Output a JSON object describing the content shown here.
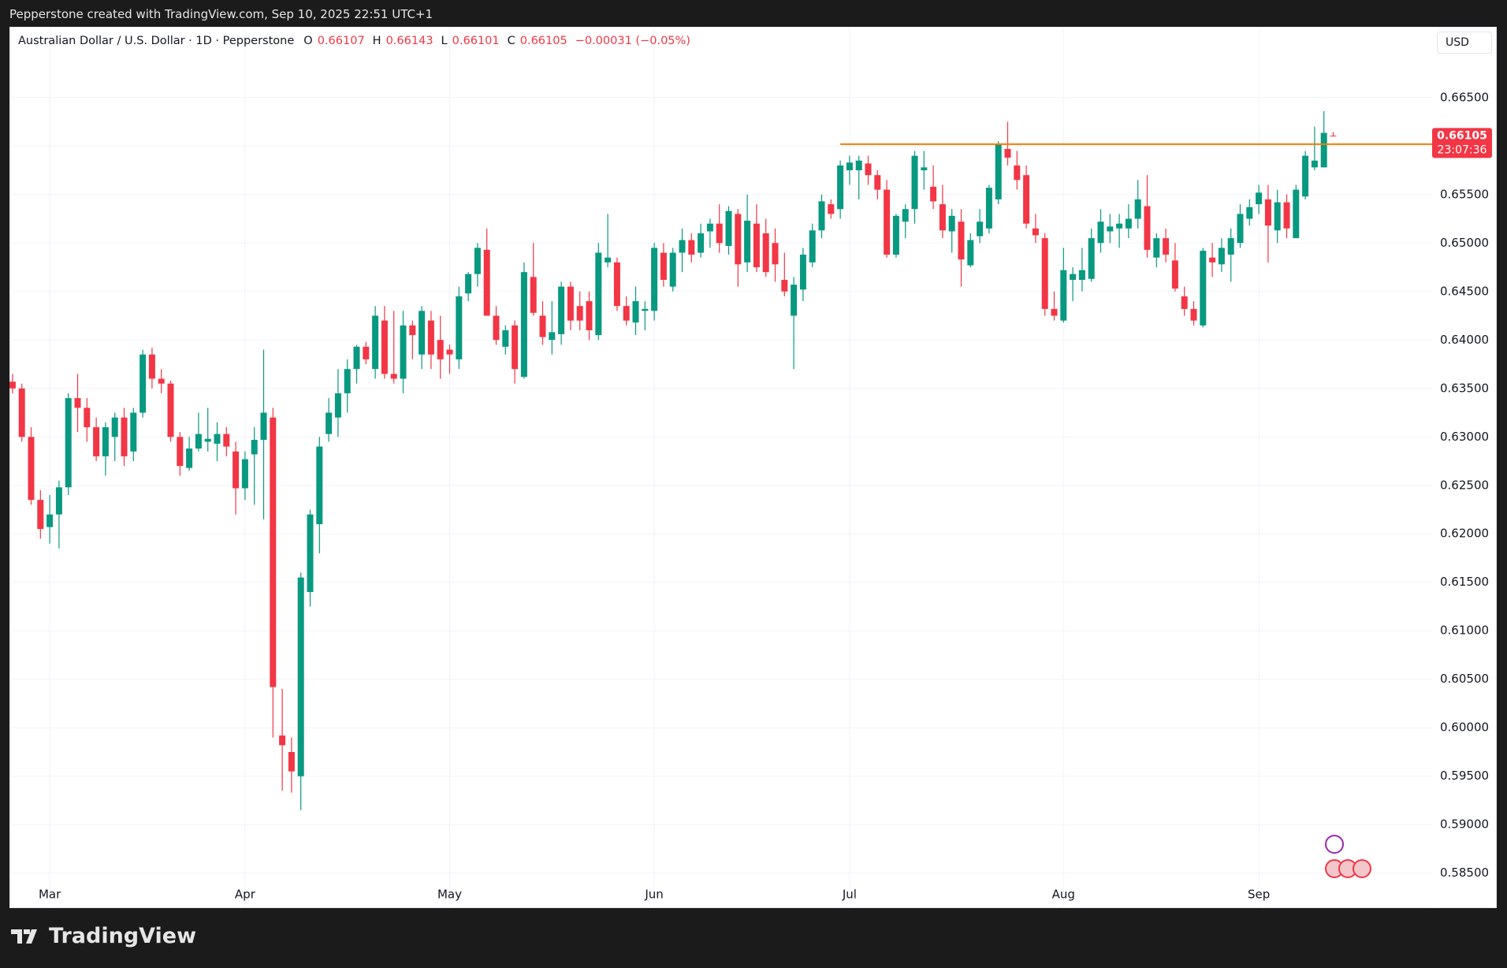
{
  "header": {
    "source": "Pepperstone created with TradingView.com, Sep 10, 2025 22:51 UTC+1",
    "symbol": "Australian Dollar / U.S. Dollar · 1D · Pepperstone",
    "ohlc_labels": [
      "O",
      "H",
      "L",
      "C"
    ],
    "change": "−0.00031 (−0.05%)",
    "currency": "USD",
    "countdown": "23:07:36"
  },
  "footer": {
    "brand": "TradingView"
  },
  "chart_data": {
    "type": "candlestick",
    "up_color": "#089981",
    "down_color": "#f23645",
    "hline": 0.6602,
    "hline_color": "#f57c00",
    "grid": true,
    "ylim": [
      0.5814,
      0.6723
    ],
    "yticks": [
      {
        "value": 0.585,
        "label": "0.58500"
      },
      {
        "value": 0.59,
        "label": "0.59000"
      },
      {
        "value": 0.595,
        "label": "0.59500"
      },
      {
        "value": 0.6,
        "label": "0.60000"
      },
      {
        "value": 0.605,
        "label": "0.60500"
      },
      {
        "value": 0.61,
        "label": "0.61000"
      },
      {
        "value": 0.615,
        "label": "0.61500"
      },
      {
        "value": 0.62,
        "label": "0.62000"
      },
      {
        "value": 0.625,
        "label": "0.62500"
      },
      {
        "value": 0.63,
        "label": "0.63000"
      },
      {
        "value": 0.635,
        "label": "0.63500"
      },
      {
        "value": 0.64,
        "label": "0.64000"
      },
      {
        "value": 0.645,
        "label": "0.64500"
      },
      {
        "value": 0.65,
        "label": "0.65000"
      },
      {
        "value": 0.655,
        "label": "0.65500"
      },
      {
        "value": 0.66,
        "label": "0.66000"
      },
      {
        "value": 0.665,
        "label": "0.66500"
      }
    ],
    "categories": [
      null,
      null,
      null,
      null,
      "Mar",
      null,
      null,
      null,
      null,
      null,
      null,
      null,
      null,
      null,
      null,
      null,
      null,
      null,
      null,
      null,
      null,
      null,
      null,
      null,
      null,
      "Apr",
      null,
      null,
      null,
      null,
      null,
      null,
      null,
      null,
      null,
      null,
      null,
      null,
      null,
      null,
      null,
      null,
      null,
      null,
      null,
      null,
      null,
      "May",
      null,
      null,
      null,
      null,
      null,
      null,
      null,
      null,
      null,
      null,
      null,
      null,
      null,
      null,
      null,
      null,
      null,
      null,
      null,
      null,
      null,
      "Jun",
      null,
      null,
      null,
      null,
      null,
      null,
      null,
      null,
      null,
      null,
      null,
      null,
      null,
      null,
      null,
      null,
      null,
      null,
      null,
      null,
      "Jul",
      null,
      null,
      null,
      null,
      null,
      null,
      null,
      null,
      null,
      null,
      null,
      null,
      null,
      null,
      null,
      null,
      null,
      null,
      null,
      null,
      null,
      null,
      "Aug",
      null,
      null,
      null,
      null,
      null,
      null,
      null,
      null,
      null,
      null,
      null,
      null,
      null,
      null,
      null,
      null,
      null,
      null,
      null,
      null,
      "Sep",
      null,
      null,
      null,
      null,
      null,
      null,
      null,
      null
    ],
    "open": [
      0.6357,
      0.635,
      0.63,
      0.6235,
      0.6207,
      0.622,
      0.6248,
      0.634,
      0.633,
      0.631,
      0.628,
      0.63,
      0.632,
      0.6285,
      0.6325,
      0.6385,
      0.636,
      0.6355,
      0.63,
      0.6268,
      0.6288,
      0.6295,
      0.6293,
      0.6303,
      0.6285,
      0.6247,
      0.6282,
      0.6297,
      0.632,
      0.5992,
      0.5975,
      0.595,
      0.614,
      0.621,
      0.6303,
      0.632,
      0.6345,
      0.637,
      0.6393,
      0.637,
      0.642,
      0.6365,
      0.636,
      0.6415,
      0.6385,
      0.642,
      0.64,
      0.639,
      0.638,
      0.6448,
      0.6468,
      0.6493,
      0.6425,
      0.6393,
      0.6415,
      0.6362,
      0.6465,
      0.6425,
      0.64,
      0.6406,
      0.6455,
      0.6435,
      0.644,
      0.6405,
      0.648,
      0.648,
      0.6435,
      0.6418,
      0.643,
      0.643,
      0.649,
      0.6455,
      0.649,
      0.6503,
      0.649,
      0.6512,
      0.652,
      0.6497,
      0.653,
      0.648,
      0.652,
      0.651,
      0.65,
      0.6462,
      0.6425,
      0.6452,
      0.648,
      0.6513,
      0.654,
      0.6535,
      0.6575,
      0.6575,
      0.6582,
      0.657,
      0.6555,
      0.6488,
      0.6522,
      0.6535,
      0.6575,
      0.6558,
      0.654,
      0.6512,
      0.6522,
      0.6477,
      0.6507,
      0.6515,
      0.6545,
      0.6597,
      0.658,
      0.657,
      0.6515,
      0.6505,
      0.6432,
      0.642,
      0.6462,
      0.6462,
      0.6463,
      0.65,
      0.6512,
      0.6515,
      0.6515,
      0.6525,
      0.6538,
      0.6485,
      0.6505,
      0.6482,
      0.6445,
      0.6432,
      0.6415,
      0.6485,
      0.6478,
      0.6488,
      0.65,
      0.6525,
      0.654,
      0.6545,
      0.6513,
      0.6542,
      0.6505,
      0.6548,
      0.6578,
      0.6578,
      0.66107
    ],
    "high": [
      0.6365,
      0.6355,
      0.631,
      0.6245,
      0.624,
      0.6255,
      0.6345,
      0.6365,
      0.634,
      0.632,
      0.6315,
      0.6325,
      0.633,
      0.633,
      0.639,
      0.6392,
      0.637,
      0.6358,
      0.6305,
      0.63,
      0.6325,
      0.633,
      0.6315,
      0.631,
      0.6295,
      0.6285,
      0.631,
      0.639,
      0.633,
      0.604,
      0.599,
      0.616,
      0.6225,
      0.63,
      0.634,
      0.637,
      0.638,
      0.6395,
      0.6398,
      0.6435,
      0.6435,
      0.643,
      0.643,
      0.642,
      0.6435,
      0.643,
      0.6425,
      0.6395,
      0.6455,
      0.647,
      0.65,
      0.6515,
      0.6435,
      0.6415,
      0.642,
      0.648,
      0.65,
      0.644,
      0.644,
      0.646,
      0.646,
      0.645,
      0.645,
      0.65,
      0.653,
      0.6485,
      0.6445,
      0.6455,
      0.644,
      0.65,
      0.65,
      0.6495,
      0.6515,
      0.651,
      0.652,
      0.6525,
      0.654,
      0.6538,
      0.6535,
      0.655,
      0.654,
      0.6525,
      0.6515,
      0.649,
      0.6465,
      0.6495,
      0.652,
      0.655,
      0.6545,
      0.6585,
      0.659,
      0.659,
      0.659,
      0.6575,
      0.6565,
      0.653,
      0.654,
      0.6595,
      0.6595,
      0.658,
      0.656,
      0.6535,
      0.6535,
      0.651,
      0.6535,
      0.656,
      0.6605,
      0.6625,
      0.6595,
      0.658,
      0.653,
      0.651,
      0.645,
      0.6495,
      0.6475,
      0.6495,
      0.6515,
      0.6535,
      0.653,
      0.653,
      0.654,
      0.6565,
      0.657,
      0.651,
      0.6515,
      0.65,
      0.6455,
      0.644,
      0.6495,
      0.65,
      0.6505,
      0.6515,
      0.654,
      0.6545,
      0.656,
      0.656,
      0.6555,
      0.655,
      0.656,
      0.6595,
      0.662,
      0.6636,
      0.66143
    ],
    "low": [
      0.6345,
      0.6295,
      0.623,
      0.6195,
      0.619,
      0.6185,
      0.624,
      0.6305,
      0.6295,
      0.6275,
      0.626,
      0.6275,
      0.627,
      0.6275,
      0.632,
      0.635,
      0.6345,
      0.6295,
      0.626,
      0.6265,
      0.6285,
      0.6285,
      0.6275,
      0.628,
      0.622,
      0.6235,
      0.623,
      0.6215,
      0.599,
      0.5935,
      0.5933,
      0.5915,
      0.6125,
      0.618,
      0.6295,
      0.63,
      0.6325,
      0.6355,
      0.6375,
      0.636,
      0.636,
      0.6355,
      0.6345,
      0.638,
      0.637,
      0.637,
      0.636,
      0.6365,
      0.637,
      0.644,
      0.6455,
      0.6425,
      0.6395,
      0.6385,
      0.6355,
      0.636,
      0.6425,
      0.6395,
      0.6385,
      0.6395,
      0.641,
      0.641,
      0.64,
      0.64,
      0.6475,
      0.643,
      0.6415,
      0.6405,
      0.641,
      0.642,
      0.6455,
      0.645,
      0.647,
      0.648,
      0.6485,
      0.6495,
      0.649,
      0.6488,
      0.6455,
      0.647,
      0.647,
      0.6465,
      0.646,
      0.6445,
      0.637,
      0.644,
      0.6475,
      0.6505,
      0.6525,
      0.6525,
      0.656,
      0.6545,
      0.656,
      0.6545,
      0.6485,
      0.6485,
      0.6505,
      0.652,
      0.6555,
      0.6535,
      0.6505,
      0.649,
      0.6455,
      0.6475,
      0.65,
      0.651,
      0.654,
      0.658,
      0.6555,
      0.6515,
      0.65,
      0.6425,
      0.642,
      0.6418,
      0.644,
      0.645,
      0.646,
      0.649,
      0.65,
      0.6495,
      0.6505,
      0.6515,
      0.6485,
      0.6475,
      0.648,
      0.645,
      0.6425,
      0.6415,
      0.6413,
      0.6465,
      0.647,
      0.646,
      0.6495,
      0.6518,
      0.653,
      0.648,
      0.65,
      0.6505,
      0.6505,
      0.6545,
      0.6575,
      0.6578,
      0.66101
    ],
    "close": [
      0.635,
      0.63,
      0.6235,
      0.6205,
      0.622,
      0.6248,
      0.634,
      0.633,
      0.631,
      0.628,
      0.631,
      0.632,
      0.628,
      0.6325,
      0.6385,
      0.636,
      0.6355,
      0.63,
      0.627,
      0.6288,
      0.6303,
      0.6298,
      0.6303,
      0.629,
      0.6247,
      0.6277,
      0.6297,
      0.6325,
      0.6042,
      0.5982,
      0.5955,
      0.6155,
      0.622,
      0.629,
      0.6325,
      0.6345,
      0.637,
      0.6393,
      0.638,
      0.6425,
      0.6365,
      0.636,
      0.6415,
      0.6405,
      0.643,
      0.6385,
      0.638,
      0.6385,
      0.6445,
      0.6468,
      0.6495,
      0.6425,
      0.64,
      0.641,
      0.637,
      0.647,
      0.6428,
      0.6403,
      0.6408,
      0.6455,
      0.642,
      0.642,
      0.641,
      0.649,
      0.6485,
      0.6435,
      0.642,
      0.644,
      0.6432,
      0.6495,
      0.6462,
      0.649,
      0.6503,
      0.6488,
      0.651,
      0.652,
      0.65,
      0.6533,
      0.6478,
      0.6523,
      0.6475,
      0.647,
      0.6478,
      0.645,
      0.6457,
      0.6488,
      0.6513,
      0.6543,
      0.653,
      0.658,
      0.6583,
      0.6585,
      0.657,
      0.6555,
      0.6488,
      0.6528,
      0.6535,
      0.659,
      0.6578,
      0.6543,
      0.6513,
      0.6528,
      0.6483,
      0.6503,
      0.6522,
      0.6557,
      0.6602,
      0.6588,
      0.6565,
      0.652,
      0.6508,
      0.6432,
      0.6425,
      0.6472,
      0.6468,
      0.6472,
      0.6505,
      0.6522,
      0.6517,
      0.652,
      0.6525,
      0.6545,
      0.6493,
      0.6505,
      0.6488,
      0.6453,
      0.6432,
      0.642,
      0.6492,
      0.648,
      0.6495,
      0.6505,
      0.653,
      0.6537,
      0.6552,
      0.6518,
      0.6542,
      0.6515,
      0.6555,
      0.659,
      0.6585,
      0.66136,
      0.66105
    ]
  }
}
